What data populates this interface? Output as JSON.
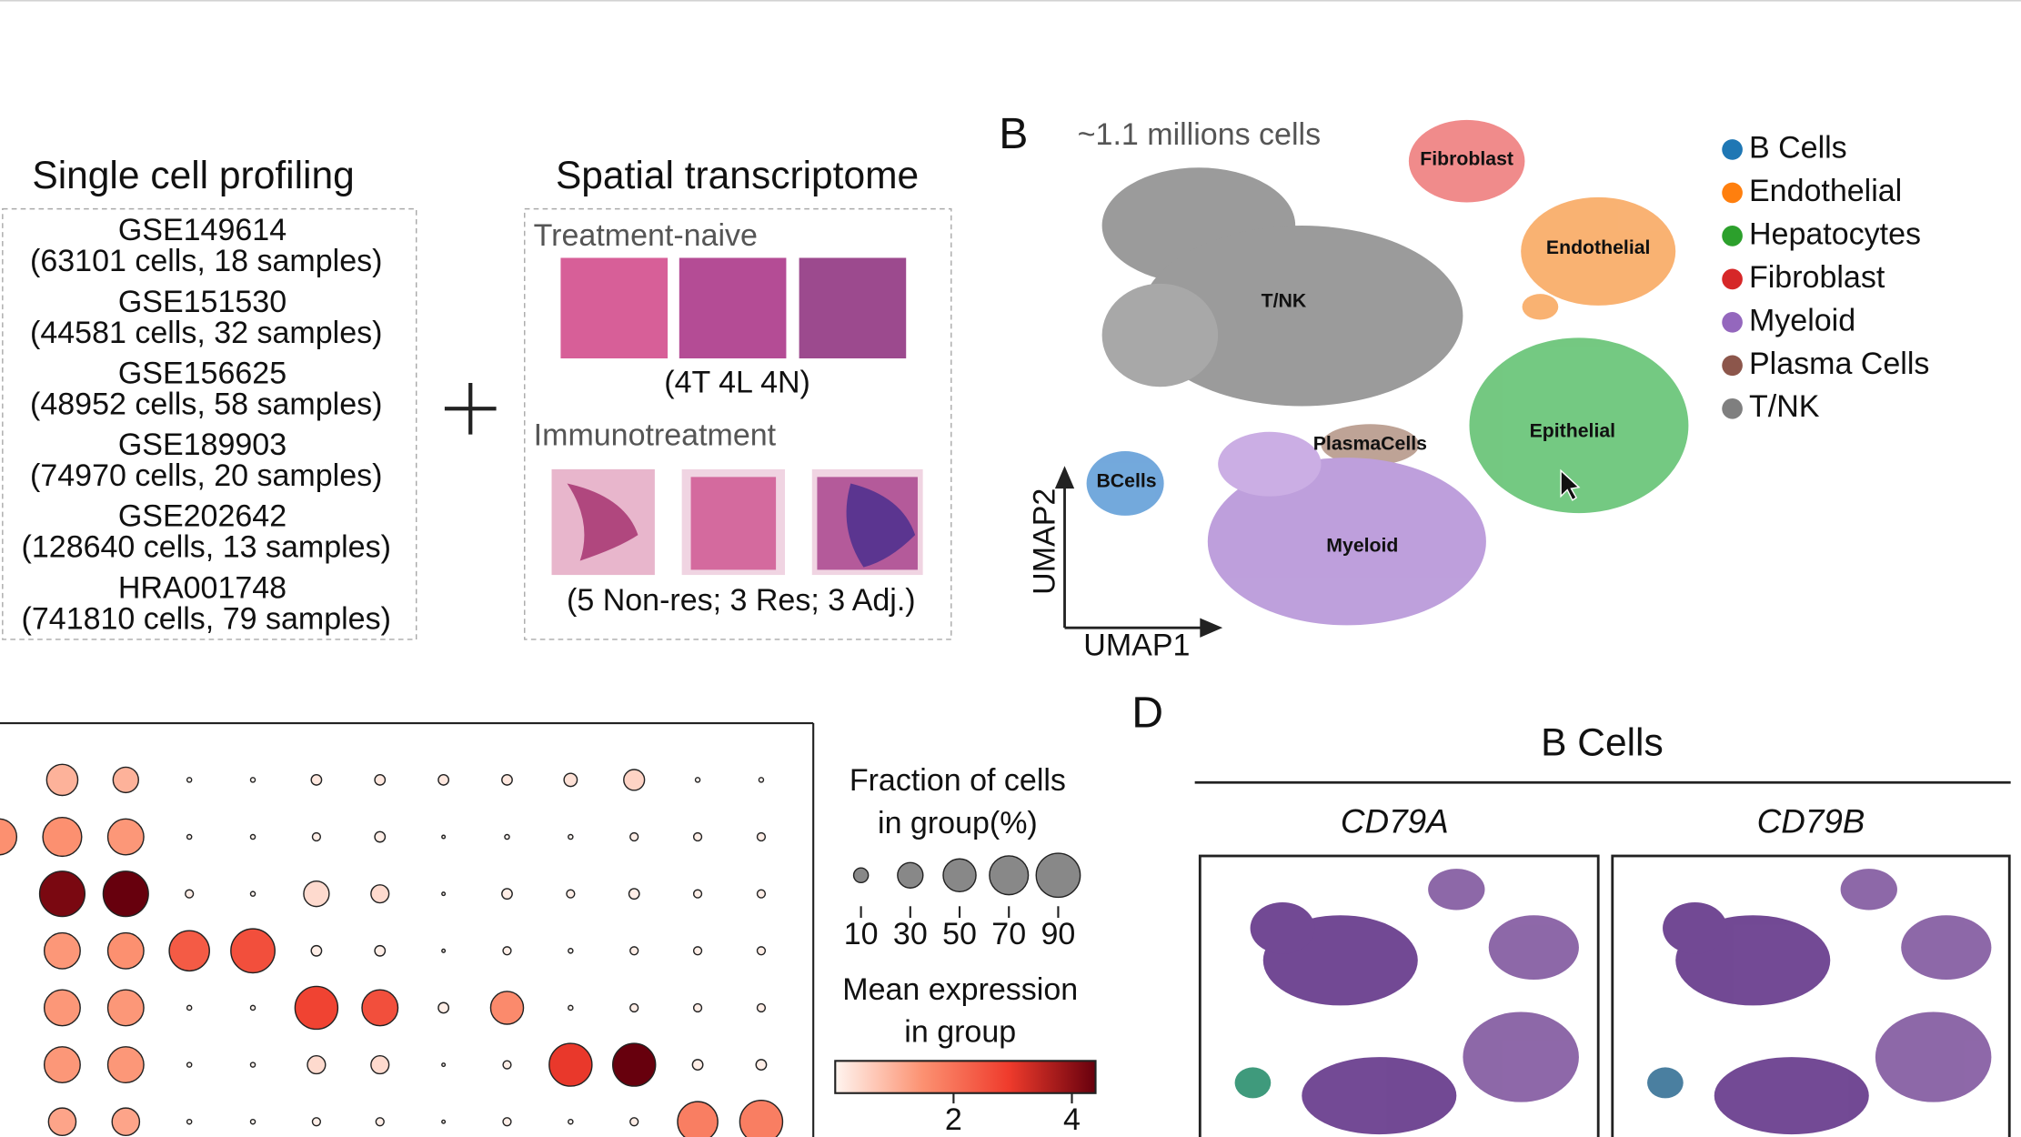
{
  "single_cell": {
    "title": "Single cell profiling",
    "datasets": [
      {
        "id": "GSE149614",
        "detail": "(63101 cells, 18 samples)"
      },
      {
        "id": "GSE151530",
        "detail": "(44581 cells, 32 samples)"
      },
      {
        "id": "GSE156625",
        "detail": "(48952 cells, 58 samples)"
      },
      {
        "id": "GSE189903",
        "detail": "(74970 cells, 20 samples)"
      },
      {
        "id": "GSE202642",
        "detail": "(128640 cells, 13 samples)"
      },
      {
        "id": "HRA001748",
        "detail": "(741810 cells, 79 samples)"
      }
    ]
  },
  "spatial": {
    "title": "Spatial transcriptome",
    "groups": [
      {
        "name": "Treatment-naive",
        "detail": "(4T 4L 4N)"
      },
      {
        "name": "Immunotreatment",
        "detail": "(5 Non-res; 3 Res; 3 Adj.)"
      }
    ]
  },
  "panel_b": {
    "letter": "B",
    "subtitle": "~1.1 millions cells",
    "clusters": [
      "Fibroblast",
      "Endothelial",
      "T/NK",
      "PlasmaCells",
      "Epithelial",
      "BCells",
      "Myeloid"
    ],
    "x_label": "UMAP1",
    "y_label": "UMAP2",
    "legend": [
      {
        "name": "B Cells",
        "color": "#1f77b4"
      },
      {
        "name": "Endothelial",
        "color": "#ff7f0e"
      },
      {
        "name": "Hepatocytes",
        "color": "#2ca02c"
      },
      {
        "name": "Fibroblast",
        "color": "#d62728"
      },
      {
        "name": "Myeloid",
        "color": "#9467bd"
      },
      {
        "name": "Plasma Cells",
        "color": "#8c564b"
      },
      {
        "name": "T/NK",
        "color": "#7f7f7f"
      }
    ]
  },
  "dotplot": {
    "type": "dot",
    "fractions": [
      [
        null,
        45,
        30,
        1,
        1,
        5,
        5,
        5,
        5,
        8,
        20,
        1,
        1
      ],
      [
        60,
        70,
        60,
        1,
        1,
        3,
        5,
        0.5,
        1,
        1,
        3,
        3,
        3
      ],
      [
        null,
        95,
        95,
        3,
        1,
        30,
        15,
        0.5,
        5,
        3,
        5,
        3,
        3
      ],
      [
        null,
        60,
        60,
        75,
        90,
        5,
        5,
        0.5,
        3,
        1,
        3,
        3,
        3
      ],
      [
        null,
        60,
        60,
        1,
        1,
        85,
        60,
        5,
        50,
        1,
        3,
        3,
        3
      ],
      [
        null,
        60,
        60,
        1,
        1,
        15,
        15,
        0.5,
        3,
        85,
        85,
        5,
        5
      ],
      [
        null,
        35,
        35,
        1,
        1,
        3,
        3,
        0.5,
        3,
        1,
        3,
        75,
        85
      ]
    ],
    "expression": [
      [
        null,
        1,
        1,
        0,
        0,
        0.2,
        0.2,
        0.2,
        0.2,
        0.3,
        0.5,
        0,
        0
      ],
      [
        1.5,
        1.5,
        1.4,
        0,
        0,
        0.1,
        0.1,
        0,
        0,
        0,
        0.1,
        0.1,
        0.1
      ],
      [
        null,
        4.2,
        4.5,
        0.1,
        0,
        0.4,
        0.4,
        0,
        0.1,
        0.1,
        0.1,
        0.1,
        0.1
      ],
      [
        null,
        1.4,
        1.5,
        2.4,
        2.6,
        0.1,
        0.1,
        0,
        0.1,
        0,
        0.1,
        0.1,
        0.1
      ],
      [
        null,
        1.4,
        1.4,
        0,
        0,
        2.8,
        2.6,
        0.1,
        1.6,
        0,
        0.1,
        0.1,
        0.1
      ],
      [
        null,
        1.4,
        1.4,
        0,
        0,
        0.4,
        0.4,
        0,
        0.1,
        3,
        4.5,
        0.1,
        0.1
      ],
      [
        null,
        1.2,
        1.2,
        0,
        0,
        0.1,
        0.1,
        0,
        0.1,
        0,
        0.1,
        1.8,
        1.8
      ]
    ],
    "size_title": [
      "Fraction of cells",
      "in group(%)"
    ],
    "size_ticks": [
      10,
      30,
      50,
      70,
      90
    ],
    "color_title": [
      "Mean expression",
      "in group"
    ],
    "clim": [
      0,
      4.4
    ],
    "color_ticks": [
      2,
      4
    ],
    "colors": [
      "#fff5f0",
      "#fc9272",
      "#ef3b2c",
      "#67000d"
    ]
  },
  "panel_d": {
    "letter": "D",
    "title": "B Cells",
    "genes": [
      "CD79A",
      "CD79B"
    ]
  }
}
